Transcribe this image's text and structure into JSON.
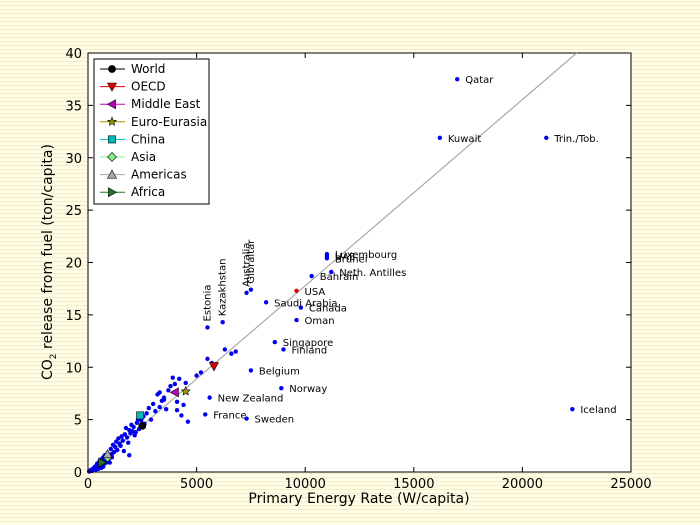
{
  "chart_data": {
    "type": "scatter",
    "xlabel": "Primary Energy Rate (W/capita)",
    "ylabel_main": "CO",
    "ylabel_sub": "2",
    "ylabel_rest": " release from fuel (ton/capita)",
    "xlim": [
      0,
      25000
    ],
    "ylim": [
      0,
      40
    ],
    "xticks": [
      0,
      5000,
      10000,
      15000,
      20000,
      25000
    ],
    "yticks": [
      0,
      5,
      10,
      15,
      20,
      25,
      30,
      35,
      40
    ],
    "grid": false,
    "legend_position": "top-left",
    "fit_line": {
      "x": [
        0,
        22500
      ],
      "y": [
        0,
        40
      ],
      "color": "#aaaaaa"
    },
    "legend": [
      {
        "label": "World",
        "marker": "circle",
        "color": "#000000"
      },
      {
        "label": "OECD",
        "marker": "triangle-down",
        "color": "#dd0000"
      },
      {
        "label": "Middle East",
        "marker": "triangle-left",
        "color": "#bb00bb"
      },
      {
        "label": "Euro-Eurasia",
        "marker": "star",
        "color": "#999900"
      },
      {
        "label": "China",
        "marker": "square",
        "color": "#00bbbb"
      },
      {
        "label": "Asia",
        "marker": "diamond",
        "color": "#88ee88"
      },
      {
        "label": "Americas",
        "marker": "triangle-up",
        "color": "#aaaaaa"
      },
      {
        "label": "Africa",
        "marker": "triangle-right",
        "color": "#227722"
      }
    ],
    "regions": [
      {
        "name": "World",
        "x": 2500,
        "y": 4.4
      },
      {
        "name": "OECD",
        "x": 5800,
        "y": 10.1
      },
      {
        "name": "Middle East",
        "x": 4000,
        "y": 7.6
      },
      {
        "name": "Euro-Eurasia",
        "x": 4500,
        "y": 7.7
      },
      {
        "name": "China",
        "x": 2400,
        "y": 5.4
      },
      {
        "name": "Asia",
        "x": 900,
        "y": 1.4
      },
      {
        "name": "Americas",
        "x": 900,
        "y": 1.7
      },
      {
        "name": "Africa",
        "x": 650,
        "y": 0.9
      }
    ],
    "labeled_points": [
      {
        "name": "Qatar",
        "x": 17000,
        "y": 37.5,
        "color": "#0000ee",
        "rotated": false
      },
      {
        "name": "Kuwait",
        "x": 16200,
        "y": 31.9,
        "color": "#0000ee",
        "rotated": false
      },
      {
        "name": "Trin./Tob.",
        "x": 21100,
        "y": 31.9,
        "color": "#0000ee",
        "rotated": false
      },
      {
        "name": "Luxembourg",
        "x": 11000,
        "y": 20.8,
        "color": "#0000ee",
        "rotated": false
      },
      {
        "name": "UAE",
        "x": 11000,
        "y": 20.6,
        "color": "#0000ee",
        "rotated": false
      },
      {
        "name": "Brunei",
        "x": 11000,
        "y": 20.4,
        "color": "#0000ee",
        "rotated": false
      },
      {
        "name": "Bahrain",
        "x": 10300,
        "y": 18.7,
        "color": "#0000ee",
        "rotated": false
      },
      {
        "name": "Neth. Antilles",
        "x": 11200,
        "y": 19.1,
        "color": "#0000ee",
        "rotated": false
      },
      {
        "name": "USA",
        "x": 9600,
        "y": 17.3,
        "color": "#dd0000",
        "rotated": false
      },
      {
        "name": "Saudi Arabia",
        "x": 8200,
        "y": 16.2,
        "color": "#0000ee",
        "rotated": false
      },
      {
        "name": "Canada",
        "x": 9800,
        "y": 15.7,
        "color": "#0000ee",
        "rotated": false
      },
      {
        "name": "Oman",
        "x": 9600,
        "y": 14.5,
        "color": "#0000ee",
        "rotated": false
      },
      {
        "name": "Singapore",
        "x": 8600,
        "y": 12.4,
        "color": "#0000ee",
        "rotated": false
      },
      {
        "name": "Finland",
        "x": 9000,
        "y": 11.7,
        "color": "#0000ee",
        "rotated": false
      },
      {
        "name": "Belgium",
        "x": 7500,
        "y": 9.7,
        "color": "#0000ee",
        "rotated": false
      },
      {
        "name": "Norway",
        "x": 8900,
        "y": 8.0,
        "color": "#0000ee",
        "rotated": false
      },
      {
        "name": "New Zealand",
        "x": 5600,
        "y": 7.1,
        "color": "#0000ee",
        "rotated": false
      },
      {
        "name": "France",
        "x": 5400,
        "y": 5.5,
        "color": "#0000ee",
        "rotated": false
      },
      {
        "name": "Sweden",
        "x": 7300,
        "y": 5.1,
        "color": "#0000ee",
        "rotated": false
      },
      {
        "name": "Iceland",
        "x": 22300,
        "y": 6.0,
        "color": "#0000ee",
        "rotated": false
      },
      {
        "name": "Estonia",
        "x": 5500,
        "y": 13.8,
        "color": "#0000ee",
        "rotated": true
      },
      {
        "name": "Kazakhstan",
        "x": 6200,
        "y": 14.3,
        "color": "#0000ee",
        "rotated": true
      },
      {
        "name": "Australia",
        "x": 7300,
        "y": 17.1,
        "color": "#0000ee",
        "rotated": true
      },
      {
        "name": "Gibraltar",
        "x": 7500,
        "y": 17.4,
        "color": "#0000ee",
        "rotated": true
      }
    ],
    "points": [
      [
        50,
        0.05
      ],
      [
        80,
        0.1
      ],
      [
        100,
        0.15
      ],
      [
        120,
        0.1
      ],
      [
        150,
        0.2
      ],
      [
        180,
        0.1
      ],
      [
        200,
        0.25
      ],
      [
        230,
        0.3
      ],
      [
        250,
        0.2
      ],
      [
        280,
        0.4
      ],
      [
        300,
        0.3
      ],
      [
        320,
        0.5
      ],
      [
        350,
        0.2
      ],
      [
        380,
        0.6
      ],
      [
        400,
        0.4
      ],
      [
        420,
        0.8
      ],
      [
        450,
        0.5
      ],
      [
        480,
        0.3
      ],
      [
        500,
        0.7
      ],
      [
        520,
        1.0
      ],
      [
        550,
        0.6
      ],
      [
        580,
        0.9
      ],
      [
        600,
        1.2
      ],
      [
        620,
        0.4
      ],
      [
        650,
        0.8
      ],
      [
        680,
        1.1
      ],
      [
        700,
        1.4
      ],
      [
        720,
        0.7
      ],
      [
        750,
        1.0
      ],
      [
        780,
        1.6
      ],
      [
        800,
        1.3
      ],
      [
        850,
        0.9
      ],
      [
        900,
        1.8
      ],
      [
        950,
        1.2
      ],
      [
        1000,
        1.5
      ],
      [
        1050,
        2.2
      ],
      [
        1100,
        1.7
      ],
      [
        1150,
        2.6
      ],
      [
        1200,
        1.9
      ],
      [
        1250,
        2.4
      ],
      [
        1300,
        2.9
      ],
      [
        1350,
        2.1
      ],
      [
        1400,
        3.2
      ],
      [
        1450,
        2.7
      ],
      [
        1500,
        2.5
      ],
      [
        1550,
        3.4
      ],
      [
        1600,
        3.0
      ],
      [
        1650,
        2.0
      ],
      [
        1700,
        3.6
      ],
      [
        1750,
        4.2
      ],
      [
        1800,
        3.3
      ],
      [
        1850,
        2.8
      ],
      [
        1900,
        4.0
      ],
      [
        1950,
        3.7
      ],
      [
        2000,
        4.5
      ],
      [
        2050,
        3.9
      ],
      [
        2100,
        4.3
      ],
      [
        2150,
        3.5
      ],
      [
        2200,
        3.8
      ],
      [
        2250,
        4.7
      ],
      [
        2300,
        5.0
      ],
      [
        2350,
        4.1
      ],
      [
        2450,
        4.9
      ],
      [
        2550,
        5.3
      ],
      [
        2600,
        4.6
      ],
      [
        2700,
        5.6
      ],
      [
        2800,
        6.1
      ],
      [
        2900,
        5.0
      ],
      [
        3000,
        6.5
      ],
      [
        3100,
        5.8
      ],
      [
        3200,
        7.4
      ],
      [
        3300,
        6.2
      ],
      [
        3400,
        6.8
      ],
      [
        3500,
        7.1
      ],
      [
        3600,
        6.0
      ],
      [
        3700,
        7.8
      ],
      [
        3800,
        8.2
      ],
      [
        3900,
        9.0
      ],
      [
        4000,
        8.4
      ],
      [
        4100,
        6.7
      ],
      [
        4200,
        8.9
      ],
      [
        4300,
        5.4
      ],
      [
        4400,
        6.4
      ],
      [
        4500,
        8.5
      ],
      [
        5000,
        9.2
      ],
      [
        5200,
        9.5
      ],
      [
        5500,
        10.8
      ],
      [
        5700,
        10.4
      ],
      [
        6300,
        11.7
      ],
      [
        6600,
        11.3
      ],
      [
        6800,
        11.5
      ],
      [
        4600,
        4.8
      ],
      [
        4100,
        5.9
      ],
      [
        3500,
        6.9
      ],
      [
        3300,
        7.6
      ],
      [
        1000,
        0.9
      ],
      [
        1100,
        1.4
      ],
      [
        600,
        0.7
      ],
      [
        1900,
        1.6
      ],
      [
        700,
        0.5
      ]
    ]
  }
}
